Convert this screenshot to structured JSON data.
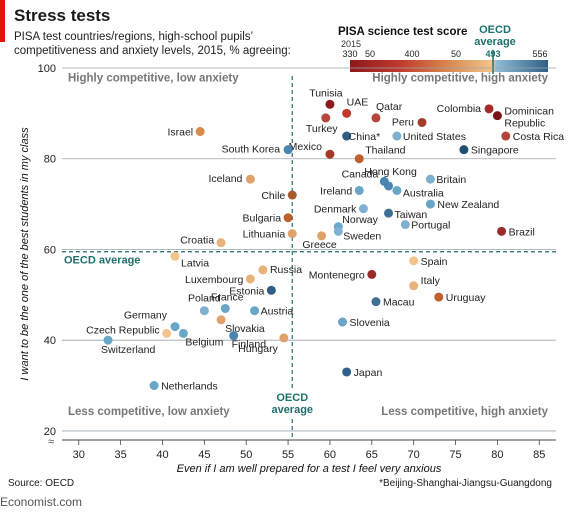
{
  "header": {
    "title": "Stress tests",
    "subtitle": "PISA test countries/regions, high-school pupils’ competitiveness and anxiety levels, 2015, % agreeing:"
  },
  "color_scale": {
    "title": "PISA science test score",
    "year": "2015",
    "ticks": [
      "330",
      "50",
      "400",
      "50",
      "493",
      "556"
    ],
    "oecd_label_line1": "OECD",
    "oecd_label_line2": "average",
    "colors": [
      "#8b1a1a",
      "#c0392b",
      "#d9894e",
      "#f2c58f",
      "#6aa6c8",
      "#2f5f86"
    ]
  },
  "chart_data": {
    "type": "scatter",
    "xlabel": "Even if I am well prepared for a test I feel very anxious",
    "ylabel": "I want to be the one of the best students in my class",
    "xlim": [
      28,
      87
    ],
    "ylim": [
      18,
      100
    ],
    "xticks": [
      30,
      35,
      40,
      45,
      50,
      55,
      60,
      65,
      70,
      75,
      80,
      85
    ],
    "yticks": [
      20,
      40,
      60,
      80,
      100
    ],
    "grid": true,
    "oecd_average_x": 55.5,
    "oecd_average_y": 59.5,
    "oecd_x_label_line1": "OECD",
    "oecd_x_label_line2": "average",
    "oecd_y_label": "OECD average",
    "quadrants": {
      "top_left": "Highly competitive, low anxiety",
      "top_right": "Highly competitive, high anxiety",
      "bottom_left": "Less competitive, low anxiety",
      "bottom_right": "Less competitive, high anxiety"
    },
    "points": [
      {
        "label": "Tunisia",
        "x": 60,
        "y": 92,
        "color": "#8b1a1a"
      },
      {
        "label": "UAE",
        "x": 62,
        "y": 90,
        "color": "#c0392b"
      },
      {
        "label": "Turkey",
        "x": 59.5,
        "y": 89,
        "color": "#b5453a"
      },
      {
        "label": "Qatar",
        "x": 65.5,
        "y": 89,
        "color": "#b5453a"
      },
      {
        "label": "Colombia",
        "x": 79,
        "y": 91,
        "color": "#a52a2a"
      },
      {
        "label": "Dominican Republic",
        "x": 80,
        "y": 89.5,
        "color": "#7a1414"
      },
      {
        "label": "Peru",
        "x": 71,
        "y": 88,
        "color": "#a63a2a"
      },
      {
        "label": "Israel",
        "x": 44.5,
        "y": 86,
        "color": "#d9894e"
      },
      {
        "label": "China*",
        "x": 62,
        "y": 85,
        "color": "#2f5f86"
      },
      {
        "label": "United States",
        "x": 68,
        "y": 85,
        "color": "#7fb0d0"
      },
      {
        "label": "Costa Rica",
        "x": 81,
        "y": 85,
        "color": "#b5453a"
      },
      {
        "label": "Mexico",
        "x": 60,
        "y": 81,
        "color": "#a63a2a"
      },
      {
        "label": "South Korea",
        "x": 55,
        "y": 82,
        "color": "#4a86b0"
      },
      {
        "label": "Thailand",
        "x": 63.5,
        "y": 80,
        "color": "#c0602e"
      },
      {
        "label": "Singapore",
        "x": 76,
        "y": 82,
        "color": "#1f4f6e"
      },
      {
        "label": "Iceland",
        "x": 50.5,
        "y": 75.5,
        "color": "#e0a26a"
      },
      {
        "label": "Canada",
        "x": 66.5,
        "y": 75,
        "color": "#4a86b0"
      },
      {
        "label": "Hong Kong",
        "x": 67,
        "y": 74,
        "color": "#4a86b0"
      },
      {
        "label": "Britain",
        "x": 72,
        "y": 75.5,
        "color": "#7fb0d0"
      },
      {
        "label": "Ireland",
        "x": 63.5,
        "y": 73,
        "color": "#6aa6c8"
      },
      {
        "label": "Australia",
        "x": 68,
        "y": 73,
        "color": "#6aa6c8"
      },
      {
        "label": "Chile",
        "x": 55.5,
        "y": 72,
        "color": "#a65a2a"
      },
      {
        "label": "Denmark",
        "x": 64,
        "y": 69,
        "color": "#7fb0d0"
      },
      {
        "label": "New Zealand",
        "x": 72,
        "y": 70,
        "color": "#6aa6c8"
      },
      {
        "label": "Taiwan",
        "x": 67,
        "y": 68,
        "color": "#3e6f95"
      },
      {
        "label": "Bulgaria",
        "x": 55,
        "y": 67,
        "color": "#c0602e"
      },
      {
        "label": "Norway",
        "x": 61,
        "y": 65,
        "color": "#6aa6c8"
      },
      {
        "label": "Portugal",
        "x": 69,
        "y": 65.5,
        "color": "#7fb0d0"
      },
      {
        "label": "Lithuania",
        "x": 55.5,
        "y": 63.5,
        "color": "#e0a26a"
      },
      {
        "label": "Greece",
        "x": 59,
        "y": 63,
        "color": "#e0a26a"
      },
      {
        "label": "Sweden",
        "x": 61,
        "y": 64,
        "color": "#7fb0d0"
      },
      {
        "label": "Brazil",
        "x": 80.5,
        "y": 64,
        "color": "#9b2a2a"
      },
      {
        "label": "Croatia",
        "x": 47,
        "y": 61.5,
        "color": "#e8b37a"
      },
      {
        "label": "Latvia",
        "x": 41.5,
        "y": 58.5,
        "color": "#f2c58f"
      },
      {
        "label": "Spain",
        "x": 70,
        "y": 57.5,
        "color": "#f2c58f"
      },
      {
        "label": "Russia",
        "x": 52,
        "y": 55.5,
        "color": "#e8b37a"
      },
      {
        "label": "Luxembourg",
        "x": 50.5,
        "y": 53.5,
        "color": "#e8b37a"
      },
      {
        "label": "Montenegro",
        "x": 65,
        "y": 54.5,
        "color": "#9b2a2a"
      },
      {
        "label": "Estonia",
        "x": 53,
        "y": 51,
        "color": "#2f5f86"
      },
      {
        "label": "Italy",
        "x": 70,
        "y": 52,
        "color": "#e8b37a"
      },
      {
        "label": "Poland",
        "x": 45,
        "y": 46.5,
        "color": "#7fb0d0"
      },
      {
        "label": "France",
        "x": 47.5,
        "y": 47,
        "color": "#6aa6c8"
      },
      {
        "label": "Macau",
        "x": 65.5,
        "y": 48.5,
        "color": "#3e6f95"
      },
      {
        "label": "Uruguay",
        "x": 73,
        "y": 49.5,
        "color": "#c0602e"
      },
      {
        "label": "Austria",
        "x": 51,
        "y": 46.5,
        "color": "#6aa6c8"
      },
      {
        "label": "Germany",
        "x": 41.5,
        "y": 43,
        "color": "#6aa6c8"
      },
      {
        "label": "Slovakia",
        "x": 47,
        "y": 44.5,
        "color": "#e0a26a"
      },
      {
        "label": "Slovenia",
        "x": 61.5,
        "y": 44,
        "color": "#6aa6c8"
      },
      {
        "label": "Czech Republic",
        "x": 40.5,
        "y": 41.5,
        "color": "#f2c58f"
      },
      {
        "label": "Belgium",
        "x": 42.5,
        "y": 41.5,
        "color": "#6aa6c8"
      },
      {
        "label": "Switzerland",
        "x": 33.5,
        "y": 40,
        "color": "#6aa6c8"
      },
      {
        "label": "Finland",
        "x": 48.5,
        "y": 41,
        "color": "#4a86b0"
      },
      {
        "label": "Hungary",
        "x": 54.5,
        "y": 40.5,
        "color": "#e0a26a"
      },
      {
        "label": "Japan",
        "x": 62,
        "y": 33,
        "color": "#2f5f86"
      },
      {
        "label": "Netherlands",
        "x": 39,
        "y": 30,
        "color": "#6aa6c8"
      }
    ]
  },
  "footer": {
    "source": "Source: OECD",
    "footnote": "*Beijing-Shanghai-Jiangsu-Guangdong",
    "logo": "Economist.com"
  }
}
